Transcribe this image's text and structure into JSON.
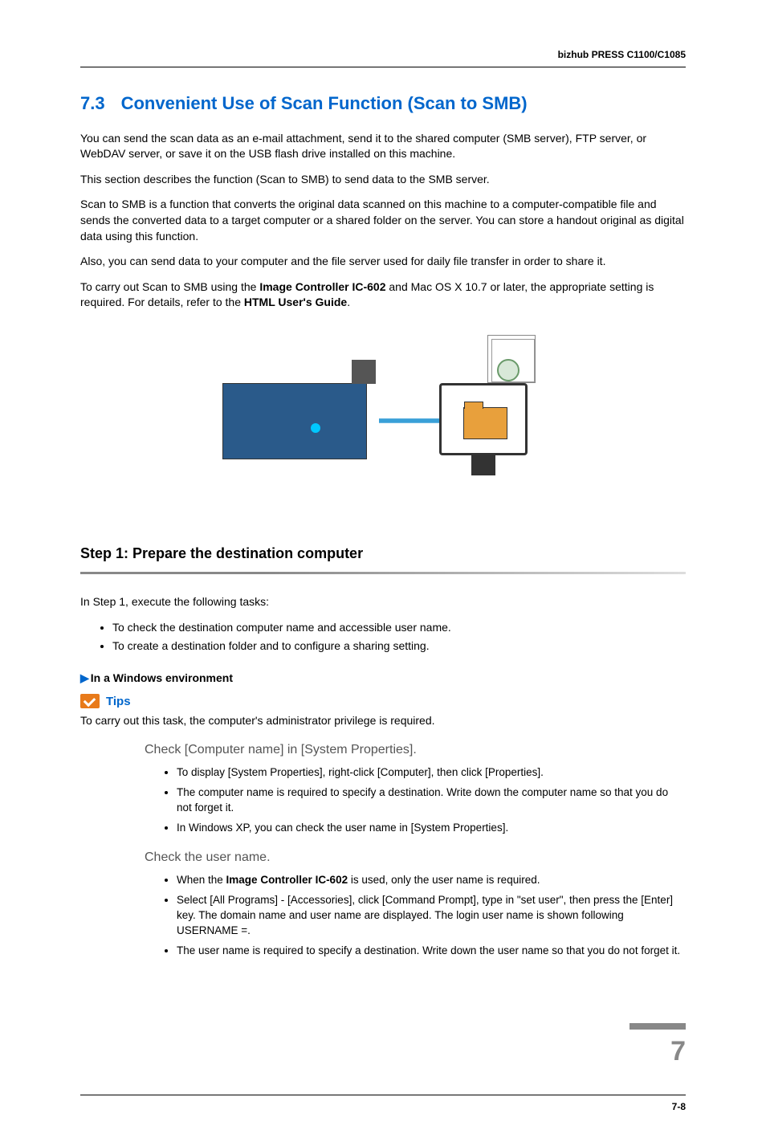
{
  "header": {
    "product": "bizhub PRESS C1100/C1085"
  },
  "section": {
    "num": "7.3",
    "title": "Convenient Use of Scan Function (Scan to SMB)"
  },
  "intro": {
    "p1": "You can send the scan data as an e-mail attachment, send it to the shared computer (SMB server), FTP server, or WebDAV server, or save it on the USB flash drive installed on this machine.",
    "p2": "This section describes the function (Scan to SMB) to send data to the SMB server.",
    "p3": "Scan to SMB is a function that converts the original data scanned on this machine to a computer-compatible file and sends the converted data to a target computer or a shared folder on the server. You can store a handout original as digital data using this function.",
    "p4": "Also, you can send data to your computer and the file server used for daily file transfer in order to share it.",
    "p5a": "To carry out Scan to SMB using the ",
    "p5b_bold": "Image Controller IC-602",
    "p5c": " and Mac OS X 10.7 or later, the appropriate setting is required. For details, refer to the ",
    "p5d_bold": "HTML User's Guide",
    "p5e": "."
  },
  "step1": {
    "title": "Step 1: Prepare the destination computer",
    "lead": "In Step 1, execute the following tasks:",
    "tasks": [
      "To check the destination computer name and accessible user name.",
      "To create a destination folder and to configure a sharing setting."
    ],
    "env": "In a Windows environment",
    "tips_label": "Tips",
    "tips_text": "To carry out this task, the computer's administrator privilege is required.",
    "sub1": {
      "heading": "Check [Computer name] in [System Properties].",
      "items": [
        "To display [System Properties], right-click [Computer], then click [Properties].",
        "The computer name is required to specify a destination. Write down the computer name so that you do not forget it.",
        "In Windows XP, you can check the user name in [System Properties]."
      ]
    },
    "sub2": {
      "heading": "Check the user name.",
      "item1a": "When the ",
      "item1b_bold": "Image Controller IC-602",
      "item1c": " is used, only the user name is required.",
      "item2": "Select [All Programs] - [Accessories], click [Command Prompt], type in \"set user\", then press the [Enter] key. The domain name and user name are displayed. The login user name is shown following USERNAME =.",
      "item3": "The user name is required to specify a destination. Write down the user name so that you do not forget it."
    }
  },
  "footer": {
    "chapter": "7",
    "page": "7-8"
  },
  "colors": {
    "heading_blue": "#0066cc",
    "tips_orange": "#e87a1a",
    "chapter_gray": "#888888"
  }
}
